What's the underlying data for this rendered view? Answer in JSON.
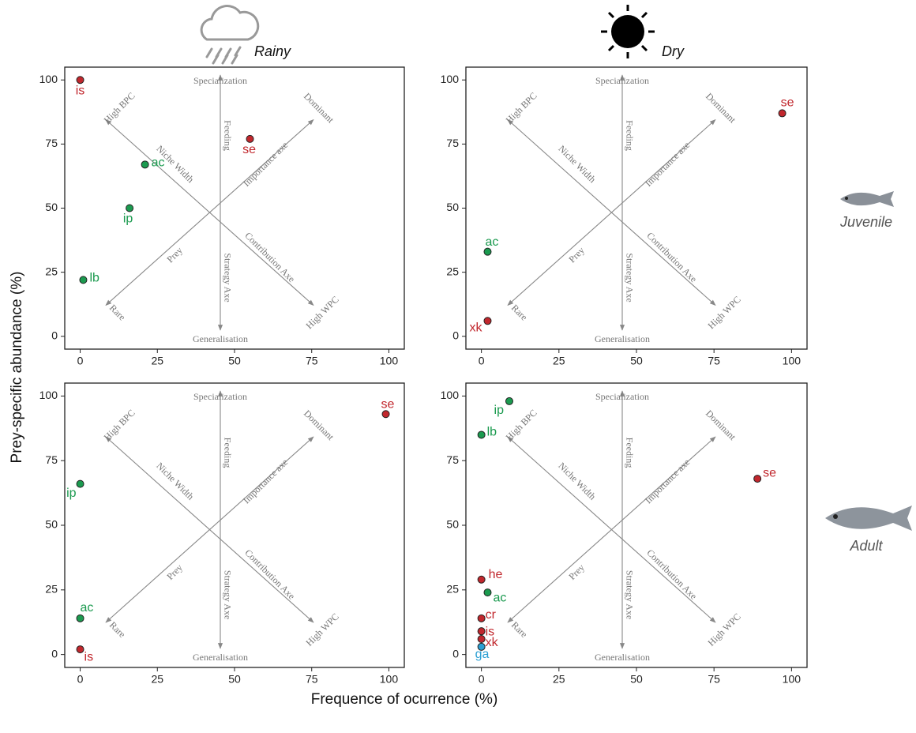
{
  "x_label": "Frequence of ocurrence (%)",
  "y_label": "Prey-specific abundance (%)",
  "columns": [
    "Rainy",
    "Dry"
  ],
  "rows": [
    "Juvenile",
    "Adult"
  ],
  "chart_data": [
    {
      "type": "scatter",
      "xlim": [
        -5,
        105
      ],
      "ylim": [
        -5,
        105
      ],
      "xticks": [
        0,
        25,
        50,
        75,
        100
      ],
      "yticks": [
        0,
        25,
        50,
        75,
        100
      ],
      "annotations": {
        "top": "Specialization",
        "bottom": "Generalisation",
        "top_left": "High BPC",
        "top_right": "Dominant",
        "bottom_left": "Rare",
        "bottom_right": "High WPC",
        "vertical_upper": "Feeding",
        "vertical_lower": "Strategy Axe",
        "diag_upper_left": "Niche Width",
        "diag_upper_right": "Importance axe",
        "diag_lower_left": "Prey",
        "diag_lower_right": "Contribution Axe"
      },
      "points": [
        {
          "label": "is",
          "x": 0,
          "y": 100,
          "color": "#c1272d"
        },
        {
          "label": "se",
          "x": 55,
          "y": 77,
          "color": "#c1272d"
        },
        {
          "label": "ac",
          "x": 21,
          "y": 67,
          "color": "#1b9a4f"
        },
        {
          "label": "ip",
          "x": 16,
          "y": 50,
          "color": "#1b9a4f"
        },
        {
          "label": "lb",
          "x": 1,
          "y": 22,
          "color": "#1b9a4f"
        }
      ]
    },
    {
      "type": "scatter",
      "xlim": [
        -5,
        105
      ],
      "ylim": [
        -5,
        105
      ],
      "xticks": [
        0,
        25,
        50,
        75,
        100
      ],
      "yticks": [
        0,
        25,
        50,
        75,
        100
      ],
      "annotations": {
        "top": "Specialization",
        "bottom": "Generalisation",
        "top_left": "High BPC",
        "top_right": "Dominant",
        "bottom_left": "Rare",
        "bottom_right": "High WPC",
        "vertical_upper": "Feeding",
        "vertical_lower": "Strategy Axe",
        "diag_upper_left": "Niche Width",
        "diag_upper_right": "Importance axe",
        "diag_lower_left": "Prey",
        "diag_lower_right": "Contribution Axe"
      },
      "points": [
        {
          "label": "se",
          "x": 97,
          "y": 87,
          "color": "#c1272d"
        },
        {
          "label": "ac",
          "x": 2,
          "y": 33,
          "color": "#1b9a4f"
        },
        {
          "label": "xk",
          "x": 2,
          "y": 6,
          "color": "#c1272d"
        }
      ]
    },
    {
      "type": "scatter",
      "xlim": [
        -5,
        105
      ],
      "ylim": [
        -5,
        105
      ],
      "xticks": [
        0,
        25,
        50,
        75,
        100
      ],
      "yticks": [
        0,
        25,
        50,
        75,
        100
      ],
      "annotations": {
        "top": "Specialization",
        "bottom": "Generalisation",
        "top_left": "High BPC",
        "top_right": "Dominant",
        "bottom_left": "Rare",
        "bottom_right": "High WPC",
        "vertical_upper": "Feeding",
        "vertical_lower": "Strategy Axe",
        "diag_upper_left": "Niche Width",
        "diag_upper_right": "Importance axe",
        "diag_lower_left": "Prey",
        "diag_lower_right": "Contribution Axe"
      },
      "points": [
        {
          "label": "se",
          "x": 99,
          "y": 93,
          "color": "#c1272d"
        },
        {
          "label": "ip",
          "x": 0,
          "y": 66,
          "color": "#1b9a4f"
        },
        {
          "label": "ac",
          "x": 0,
          "y": 14,
          "color": "#1b9a4f"
        },
        {
          "label": "is",
          "x": 0,
          "y": 2,
          "color": "#c1272d"
        }
      ]
    },
    {
      "type": "scatter",
      "xlim": [
        -5,
        105
      ],
      "ylim": [
        -5,
        105
      ],
      "xticks": [
        0,
        25,
        50,
        75,
        100
      ],
      "yticks": [
        0,
        25,
        50,
        75,
        100
      ],
      "annotations": {
        "top": "Specialization",
        "bottom": "Generalisation",
        "top_left": "High BPC",
        "top_right": "Dominant",
        "bottom_left": "Rare",
        "bottom_right": "High WPC",
        "vertical_upper": "Feeding",
        "vertical_lower": "Strategy Axe",
        "diag_upper_left": "Niche Width",
        "diag_upper_right": "Importance axe",
        "diag_lower_left": "Prey",
        "diag_lower_right": "Contribution Axe"
      },
      "points": [
        {
          "label": "ip",
          "x": 9,
          "y": 98,
          "color": "#1b9a4f"
        },
        {
          "label": "lb",
          "x": 0,
          "y": 85,
          "color": "#1b9a4f"
        },
        {
          "label": "se",
          "x": 89,
          "y": 68,
          "color": "#c1272d"
        },
        {
          "label": "he",
          "x": 0,
          "y": 29,
          "color": "#c1272d"
        },
        {
          "label": "ac",
          "x": 2,
          "y": 24,
          "color": "#1b9a4f"
        },
        {
          "label": "cr",
          "x": 0,
          "y": 14,
          "color": "#c1272d"
        },
        {
          "label": "is",
          "x": 0,
          "y": 9,
          "color": "#c1272d"
        },
        {
          "label": "xk",
          "x": 0,
          "y": 6,
          "color": "#c1272d"
        },
        {
          "label": "ga",
          "x": 0,
          "y": 3,
          "color": "#2b9fd3"
        }
      ]
    }
  ]
}
